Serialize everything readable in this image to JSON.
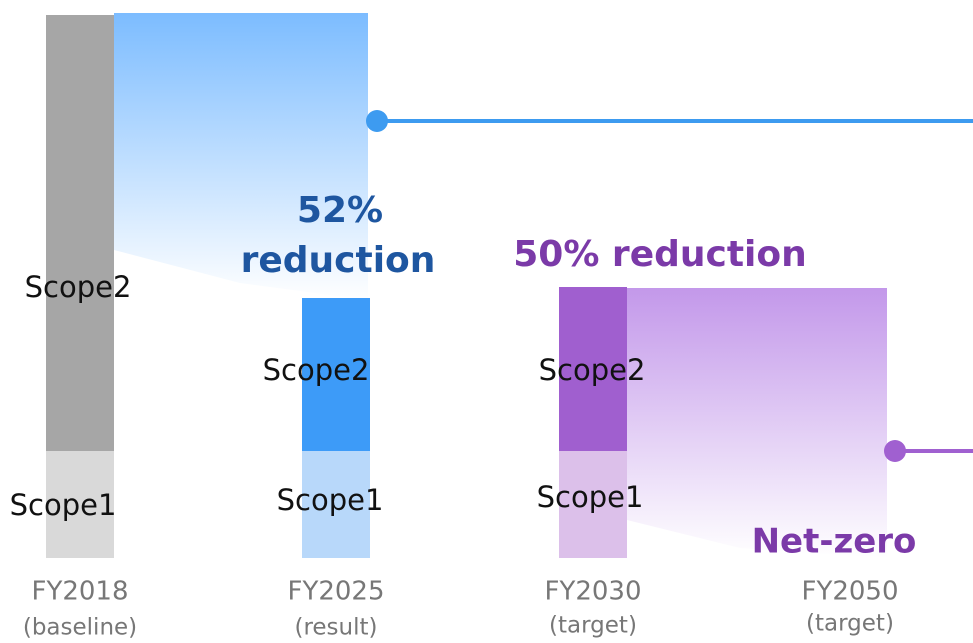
{
  "bars": [
    {
      "label": "FY2018",
      "sublabel": "(baseline)",
      "scope2": "Scope2",
      "scope1": "Scope1"
    },
    {
      "label": "FY2025",
      "sublabel": "(result)",
      "scope2": "Scope2",
      "scope1": "Scope1"
    },
    {
      "label": "FY2030",
      "sublabel": "(target)",
      "scope2": "Scope2",
      "scope1": "Scope1"
    },
    {
      "label": "FY2050",
      "sublabel": "(target)"
    }
  ],
  "annotations": {
    "result_line1": "52%",
    "result_line2": "reduction",
    "target_2030": "50% reduction",
    "target_2050": "Net-zero"
  }
}
